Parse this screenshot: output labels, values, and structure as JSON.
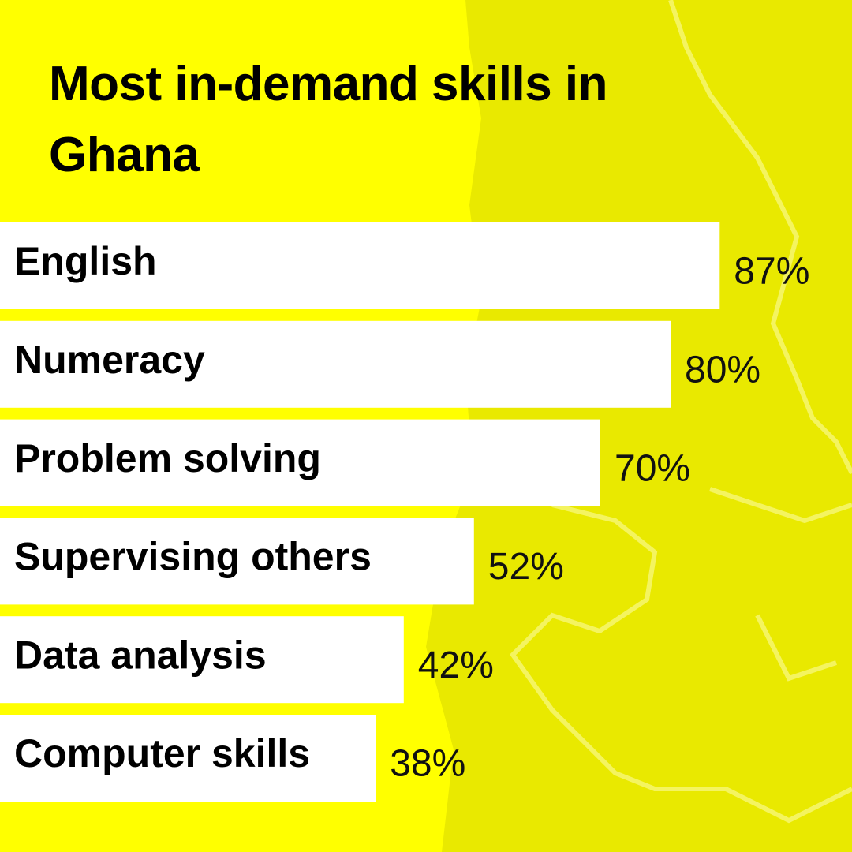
{
  "chart_data": {
    "type": "bar",
    "orientation": "horizontal",
    "title": "Most in-demand skills in Ghana",
    "categories": [
      "English",
      "Numeracy",
      "Problem solving",
      "Supervising others",
      "Data analysis",
      "Computer skills"
    ],
    "values": [
      87,
      80,
      70,
      52,
      42,
      38
    ],
    "value_labels": [
      "87%",
      "80%",
      "70%",
      "52%",
      "42%",
      "38%"
    ],
    "color": "#ffffff"
  }
}
